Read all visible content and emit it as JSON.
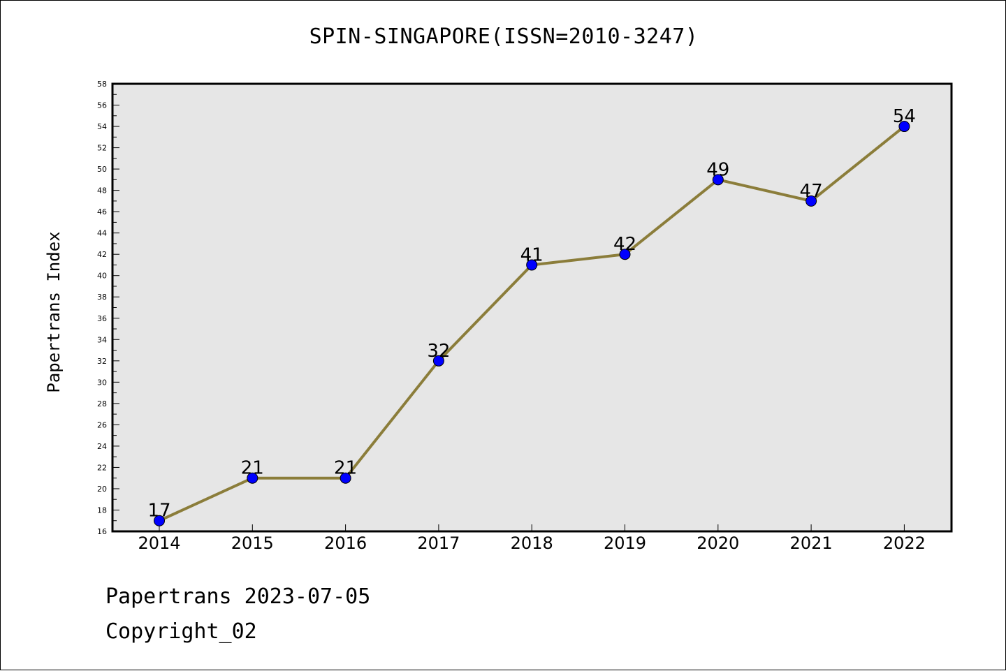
{
  "chart_data": {
    "type": "line",
    "title": "SPIN-SINGAPORE(ISSN=2010-3247)",
    "xlabel": "",
    "ylabel": "Papertrans Index",
    "categories": [
      "2014",
      "2015",
      "2016",
      "2017",
      "2018",
      "2019",
      "2020",
      "2021",
      "2022"
    ],
    "series": [
      {
        "values": [
          17,
          21,
          21,
          32,
          41,
          42,
          49,
          47,
          54
        ]
      }
    ],
    "ylim": [
      16,
      58
    ],
    "ytick_step": 2,
    "grid": false,
    "line_color": "#8b7d3a",
    "marker_color": "#0000ff",
    "plot_background": "#e6e6e6"
  },
  "footer": {
    "source": "Papertrans 2023-07-05",
    "copyright": "Copyright_02"
  }
}
